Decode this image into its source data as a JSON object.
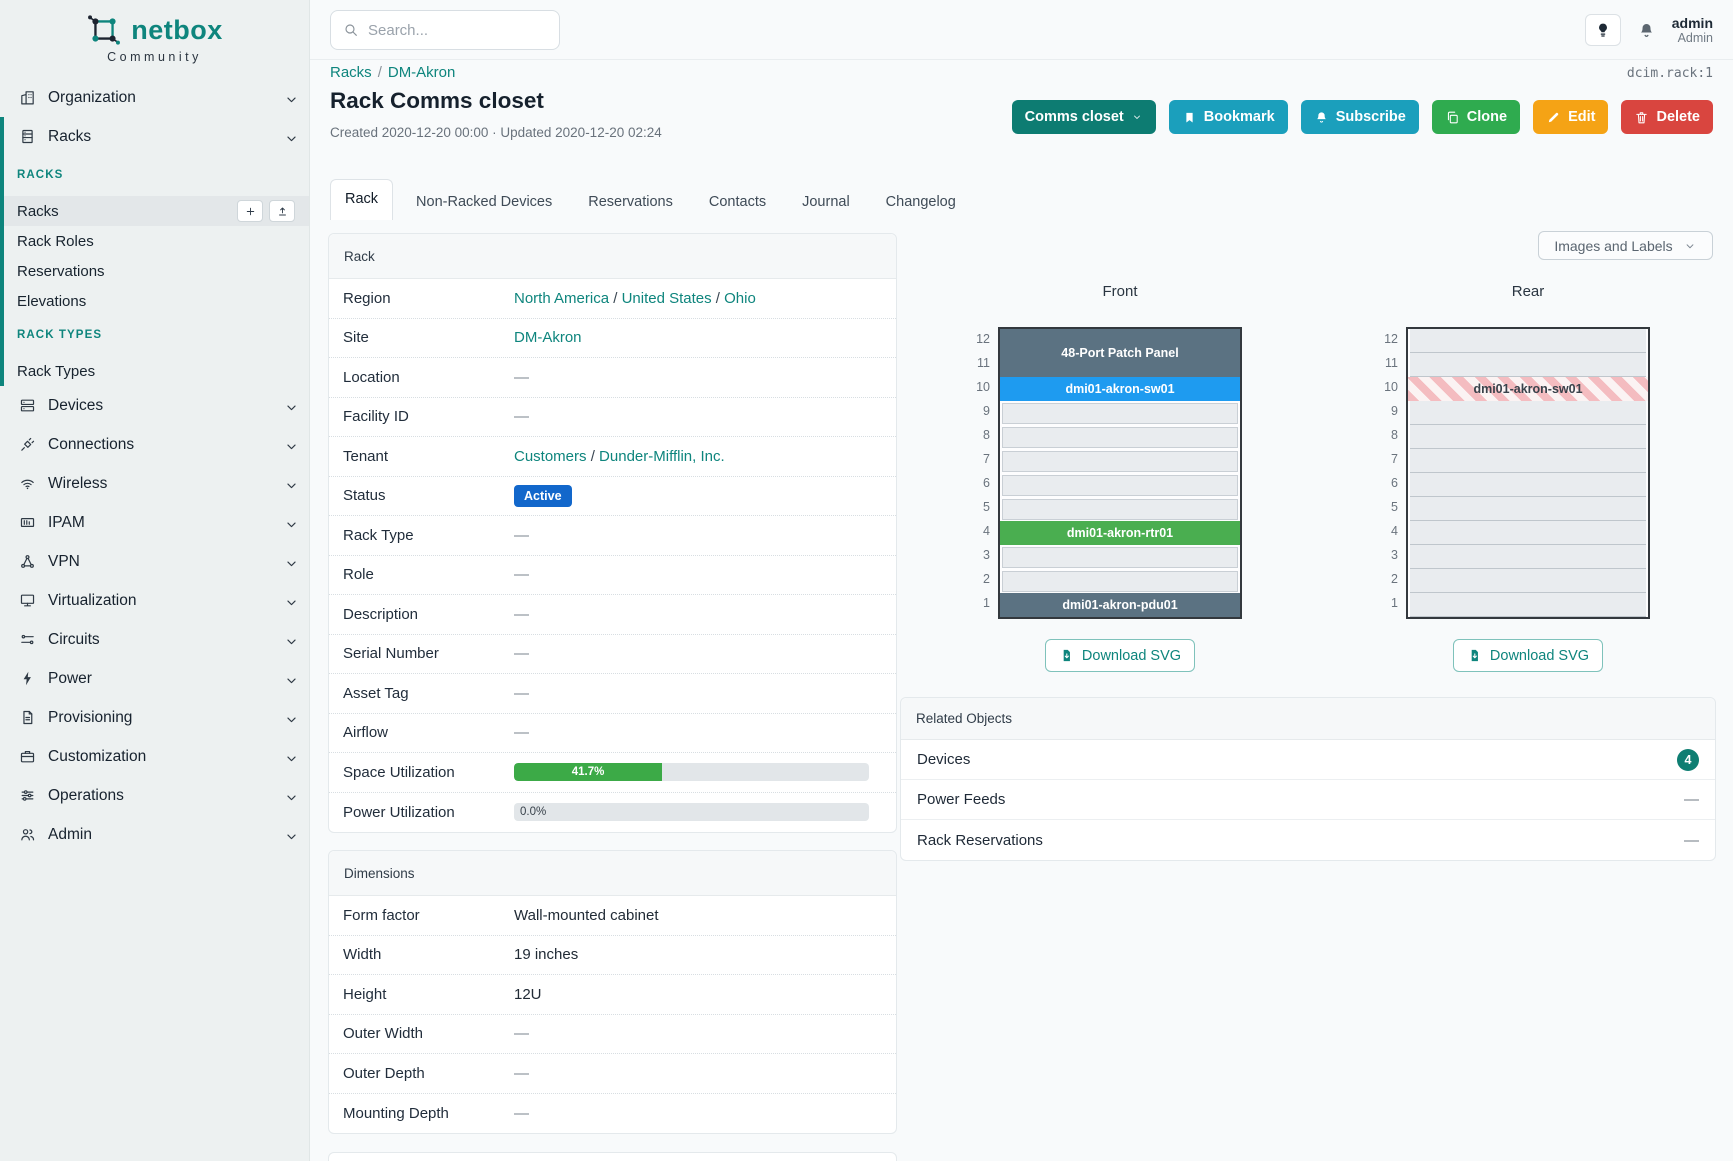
{
  "colors": {
    "accent": "#0e857d",
    "action_dark_teal": "#0d7c72",
    "action_cyan": "#1b9fbc",
    "action_green": "#2fab4f",
    "action_orange": "#f5a315",
    "action_red": "#d9453f",
    "status_blue": "#1267cb",
    "progress_green": "#3caa47",
    "unit_slate": "#5b7282",
    "unit_blue": "#1e9bf0",
    "unit_green": "#4aae50",
    "badge_teal": "#0e7e72"
  },
  "brand": {
    "name": "netbox",
    "subtitle": "Community"
  },
  "topbar": {
    "search_placeholder": "Search...",
    "user_name": "admin",
    "user_role": "Admin"
  },
  "breadcrumb": [
    "Racks",
    "DM-Akron"
  ],
  "object_id": "dcim.rack:1",
  "page": {
    "title": "Rack Comms closet",
    "meta": "Created 2020-12-20 00:00 · Updated 2020-12-20 02:24"
  },
  "actions": {
    "view": "Comms closet",
    "bookmark": "Bookmark",
    "subscribe": "Subscribe",
    "clone": "Clone",
    "edit": "Edit",
    "delete": "Delete"
  },
  "tabs": [
    {
      "label": "Rack",
      "active": true
    },
    {
      "label": "Non-Racked Devices"
    },
    {
      "label": "Reservations"
    },
    {
      "label": "Contacts"
    },
    {
      "label": "Journal"
    },
    {
      "label": "Changelog"
    }
  ],
  "sidebar": [
    {
      "kind": "top",
      "icon": "building-icon",
      "label": "Organization"
    },
    {
      "kind": "group",
      "children": [
        {
          "kind": "top",
          "icon": "rack-icon",
          "label": "Racks"
        },
        {
          "kind": "section",
          "label": "RACKS"
        },
        {
          "kind": "sub",
          "label": "Racks",
          "active": true
        },
        {
          "kind": "sub",
          "label": "Rack Roles"
        },
        {
          "kind": "sub",
          "label": "Reservations"
        },
        {
          "kind": "sub",
          "label": "Elevations"
        },
        {
          "kind": "section",
          "label": "RACK TYPES"
        },
        {
          "kind": "sub",
          "label": "Rack Types"
        }
      ]
    },
    {
      "kind": "top",
      "icon": "devices-icon",
      "label": "Devices"
    },
    {
      "kind": "top",
      "icon": "plug-icon",
      "label": "Connections"
    },
    {
      "kind": "top",
      "icon": "wifi-icon",
      "label": "Wireless"
    },
    {
      "kind": "top",
      "icon": "ipam-icon",
      "label": "IPAM"
    },
    {
      "kind": "top",
      "icon": "vpn-icon",
      "label": "VPN"
    },
    {
      "kind": "top",
      "icon": "monitor-icon",
      "label": "Virtualization"
    },
    {
      "kind": "top",
      "icon": "circuit-icon",
      "label": "Circuits"
    },
    {
      "kind": "top",
      "icon": "bolt-icon",
      "label": "Power"
    },
    {
      "kind": "top",
      "icon": "document-icon",
      "label": "Provisioning"
    },
    {
      "kind": "top",
      "icon": "briefcase-icon",
      "label": "Customization"
    },
    {
      "kind": "top",
      "icon": "sliders-icon",
      "label": "Operations"
    },
    {
      "kind": "top",
      "icon": "users-icon",
      "label": "Admin"
    }
  ],
  "rack_panel": {
    "title": "Rack",
    "rows": [
      {
        "label": "Region",
        "type": "links",
        "parts": [
          "North America",
          "United States",
          "Ohio"
        ]
      },
      {
        "label": "Site",
        "type": "links",
        "parts": [
          "DM-Akron"
        ]
      },
      {
        "label": "Location",
        "type": "dash"
      },
      {
        "label": "Facility ID",
        "type": "dash"
      },
      {
        "label": "Tenant",
        "type": "links",
        "parts": [
          "Customers",
          "Dunder-Mifflin, Inc."
        ]
      },
      {
        "label": "Status",
        "type": "badge",
        "value": "Active"
      },
      {
        "label": "Rack Type",
        "type": "dash"
      },
      {
        "label": "Role",
        "type": "dash"
      },
      {
        "label": "Description",
        "type": "dash"
      },
      {
        "label": "Serial Number",
        "type": "dash"
      },
      {
        "label": "Asset Tag",
        "type": "dash"
      },
      {
        "label": "Airflow",
        "type": "dash"
      },
      {
        "label": "Space Utilization",
        "type": "progress",
        "percent": 41.7,
        "text": "41.7%"
      },
      {
        "label": "Power Utilization",
        "type": "progress",
        "percent": 0,
        "text": "0.0%"
      }
    ]
  },
  "dimensions_panel": {
    "title": "Dimensions",
    "rows": [
      {
        "label": "Form factor",
        "type": "text",
        "value": "Wall-mounted cabinet"
      },
      {
        "label": "Width",
        "type": "text",
        "value": "19 inches"
      },
      {
        "label": "Height",
        "type": "text",
        "value": "12U"
      },
      {
        "label": "Outer Width",
        "type": "dash"
      },
      {
        "label": "Outer Depth",
        "type": "dash"
      },
      {
        "label": "Mounting Depth",
        "type": "dash"
      }
    ]
  },
  "elevations": {
    "view_toggle": "Images and Labels",
    "download_label": "Download SVG",
    "unit_count": 12,
    "front": {
      "title": "Front",
      "units": [
        {
          "top_u": 12,
          "span": 2,
          "label": "48-Port Patch Panel",
          "color": "#5b7282"
        },
        {
          "top_u": 10,
          "span": 1,
          "label": "dmi01-akron-sw01",
          "color": "#1e9bf0"
        },
        {
          "top_u": 4,
          "span": 1,
          "label": "dmi01-akron-rtr01",
          "color": "#4aae50"
        },
        {
          "top_u": 1,
          "span": 1,
          "label": "dmi01-akron-pdu01",
          "color": "#5b7282"
        }
      ]
    },
    "rear": {
      "title": "Rear",
      "units": [
        {
          "top_u": 10,
          "span": 1,
          "label": "dmi01-akron-sw01",
          "striped": true
        }
      ]
    }
  },
  "related_objects": {
    "title": "Related Objects",
    "rows": [
      {
        "label": "Devices",
        "badge": "4"
      },
      {
        "label": "Power Feeds",
        "value": "—"
      },
      {
        "label": "Rack Reservations",
        "value": "—"
      }
    ]
  }
}
